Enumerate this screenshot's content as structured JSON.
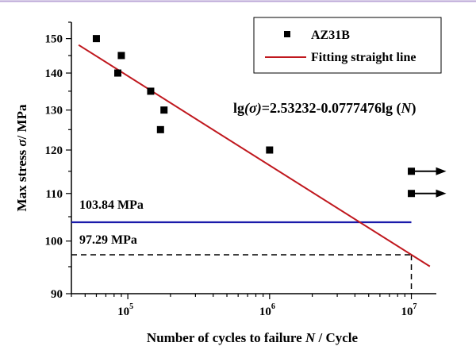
{
  "chart_data": {
    "type": "scatter",
    "x_scale": "log",
    "y_scale": "log",
    "xlim": [
      40000,
      15000000
    ],
    "ylim": [
      90,
      155
    ],
    "xlabel_parts": [
      "Number of cycles to failure ",
      "N",
      " / Cycle"
    ],
    "ylabel_parts": [
      "Max stress ",
      "σ",
      "/ MPa"
    ],
    "x_ticks": [
      {
        "base": "10",
        "exp": "5",
        "value": 100000
      },
      {
        "base": "10",
        "exp": "6",
        "value": 1000000
      },
      {
        "base": "10",
        "exp": "7",
        "value": 10000000
      }
    ],
    "y_ticks": [
      {
        "label": "90",
        "value": 90
      },
      {
        "label": "100",
        "value": 100
      },
      {
        "label": "110",
        "value": 110
      },
      {
        "label": "120",
        "value": 120
      },
      {
        "label": "130",
        "value": 130
      },
      {
        "label": "140",
        "value": 140
      },
      {
        "label": "150",
        "value": 150
      }
    ],
    "series": [
      {
        "name": "AZ31B",
        "color": "#000000",
        "marker": "square",
        "points": [
          {
            "x": 60000,
            "y": 150
          },
          {
            "x": 85000,
            "y": 140
          },
          {
            "x": 90000,
            "y": 145
          },
          {
            "x": 145000,
            "y": 135
          },
          {
            "x": 170000,
            "y": 125
          },
          {
            "x": 180000,
            "y": 130
          },
          {
            "x": 1000000,
            "y": 120
          }
        ],
        "runouts": [
          {
            "x": 10000000,
            "y": 115
          },
          {
            "x": 10000000,
            "y": 110
          }
        ]
      },
      {
        "name": "Fitting straight line",
        "color": "#c0181e",
        "type": "line",
        "intercept": 2.53232,
        "slope": -0.0777476,
        "x_range": [
          45000,
          13500000
        ]
      }
    ],
    "equation_parts": [
      "lg",
      "(σ)",
      "=2.53232-0.0777476lg",
      " (",
      "N",
      ")"
    ],
    "reference_lines": [
      {
        "label": "103.84 MPa",
        "value": 103.84,
        "color": "#1a1aaa",
        "style": "solid"
      },
      {
        "label": "97.29 MPa",
        "value": 97.29,
        "color": "#000000",
        "style": "dashed"
      }
    ],
    "legend_position": "top-right"
  }
}
